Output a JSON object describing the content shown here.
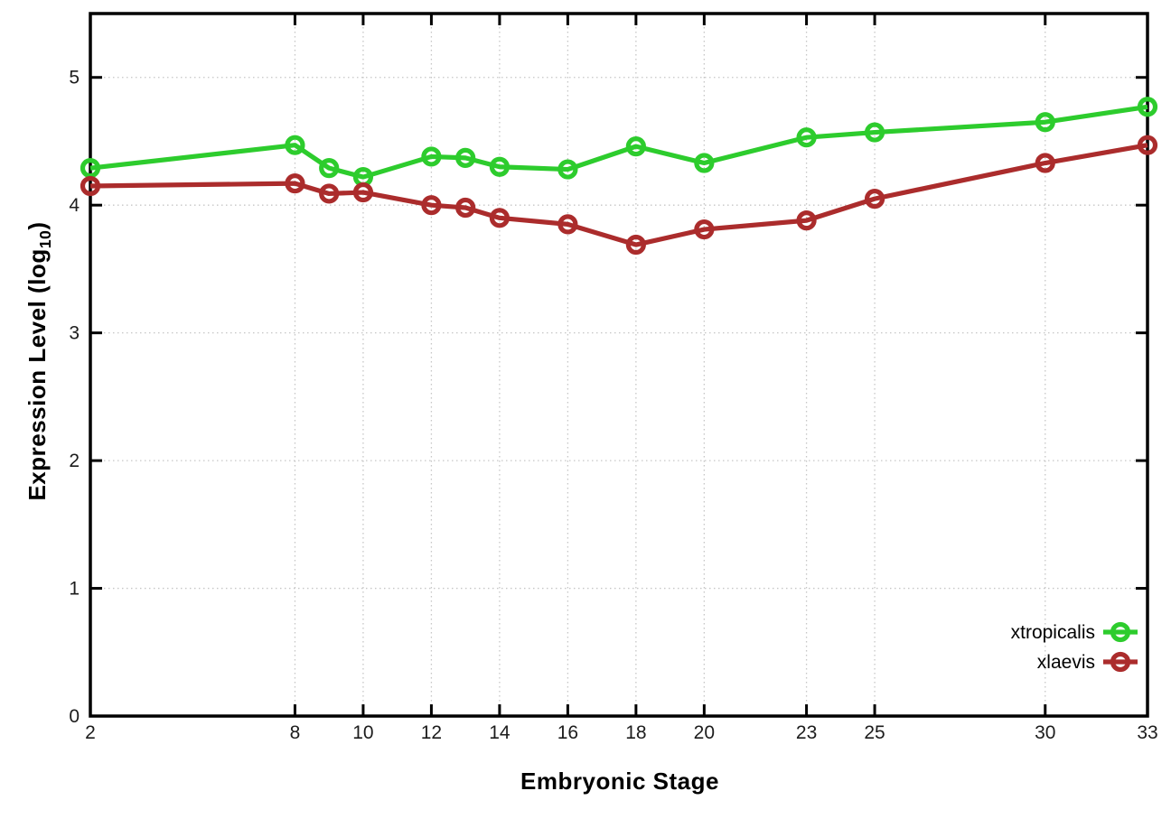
{
  "figure": {
    "background": "#ffffff",
    "border_color": "#000000",
    "grid_color": "#c6c6c6",
    "tick_color": "#000000",
    "text_color": "#1c1c1c"
  },
  "chart_data": {
    "type": "line",
    "title": "",
    "xlabel": "Embryonic Stage",
    "ylabel": "Expression Level (log10)",
    "ylabel_parts": {
      "prefix": "Expression Level (log",
      "sub": "10",
      "suffix": ")"
    },
    "x": [
      2,
      8,
      9,
      10,
      12,
      13,
      14,
      16,
      18,
      20,
      23,
      25,
      30,
      33
    ],
    "series": [
      {
        "name": "xtropicalis",
        "color": "#2dcc2d",
        "values": [
          4.29,
          4.47,
          4.29,
          4.22,
          4.38,
          4.37,
          4.3,
          4.28,
          4.46,
          4.33,
          4.53,
          4.57,
          4.65,
          4.77
        ]
      },
      {
        "name": "xlaevis",
        "color": "#ab2c2c",
        "values": [
          4.15,
          4.17,
          4.09,
          4.1,
          4.0,
          3.98,
          3.9,
          3.85,
          3.69,
          3.81,
          3.88,
          4.05,
          4.33,
          4.47
        ]
      }
    ],
    "xticks": [
      2,
      8,
      10,
      12,
      14,
      16,
      18,
      20,
      23,
      25,
      30,
      33
    ],
    "yticks": [
      0,
      1,
      2,
      3,
      4,
      5
    ],
    "xlim": [
      2,
      33
    ],
    "ylim": [
      0,
      5.5
    ],
    "grid": true,
    "marker": "open-circle",
    "legend_position": "bottom-right"
  }
}
